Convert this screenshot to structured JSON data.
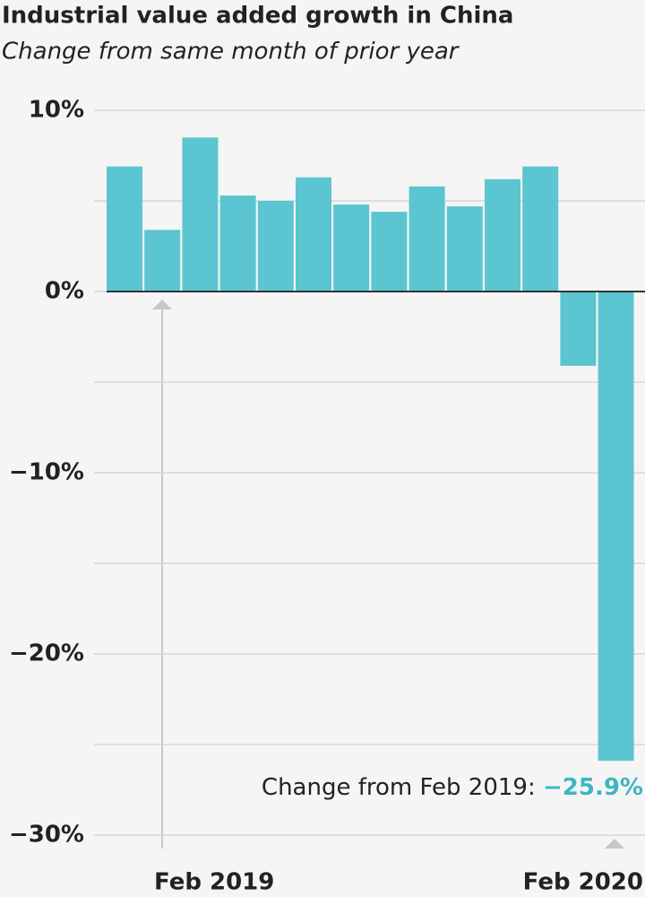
{
  "chart_data": {
    "type": "bar",
    "title": "Industrial value added growth in China",
    "subtitle": "Change from same month of prior year",
    "categories": [
      null,
      "Feb 2019",
      null,
      null,
      null,
      null,
      null,
      null,
      null,
      null,
      null,
      null,
      null,
      "Feb 2020"
    ],
    "values": [
      6.9,
      3.4,
      8.5,
      5.3,
      5.0,
      6.3,
      4.8,
      4.4,
      5.8,
      4.7,
      6.2,
      6.9,
      -4.1,
      -25.9
    ],
    "value_labels": [
      null,
      null,
      null,
      null,
      null,
      null,
      null,
      null,
      null,
      null,
      null,
      null,
      null,
      "−25.9%"
    ],
    "annotation": "Change from Feb 2019:",
    "color": "#5bc5d1",
    "ylim": [
      -30,
      10
    ],
    "yticks": [
      {
        "value": 10,
        "label": "10%"
      },
      {
        "value": 0,
        "label": "0%"
      },
      {
        "value": -10,
        "label": "−10%"
      },
      {
        "value": -20,
        "label": "−20%"
      },
      {
        "value": -30,
        "label": "−30%"
      }
    ],
    "minor_yticks": [
      5,
      -5,
      -15,
      -25
    ],
    "grid": true
  }
}
